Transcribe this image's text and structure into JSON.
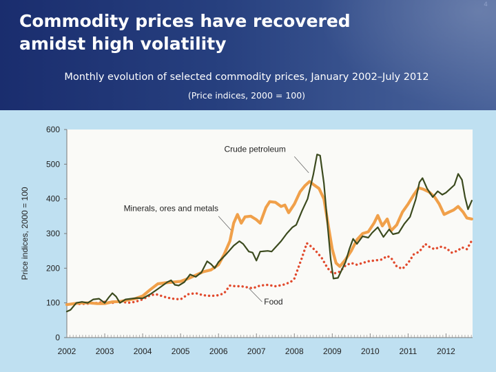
{
  "header": {
    "title": "Commodity prices have recovered amidst high volatility",
    "subtitle": "Monthly evolution of selected commodity prices, January 2002–July 2012",
    "subsubtitle": "(Price indices, 2000 = 100)",
    "slide_number": "4"
  },
  "colors": {
    "crude": "#3b4a1e",
    "minerals": "#f0a04a",
    "food": "#e14a2d",
    "panel": "#bfe0f1",
    "plot": "#fafaf7",
    "header": "#27407f"
  },
  "chart_data": {
    "type": "line",
    "title": "Monthly evolution of selected commodity prices, January 2002–July 2012",
    "ylabel": "Price indices, 2000 = 100",
    "xlabel": "",
    "ylim": [
      0,
      600
    ],
    "yticks": [
      0,
      100,
      200,
      300,
      400,
      500,
      600
    ],
    "xlim": [
      2002.0,
      2012.7
    ],
    "xticks": [
      "2002",
      "2003",
      "2004",
      "2005",
      "2006",
      "2007",
      "2008",
      "2009",
      "2010",
      "2011",
      "2012"
    ],
    "grid": false,
    "legend": "inline annotations",
    "series": [
      {
        "name": "Crude petroleum",
        "style": "solid",
        "points": [
          [
            2002.0,
            75
          ],
          [
            2002.1,
            80
          ],
          [
            2002.25,
            100
          ],
          [
            2002.4,
            103
          ],
          [
            2002.55,
            100
          ],
          [
            2002.7,
            110
          ],
          [
            2002.85,
            112
          ],
          [
            2003.0,
            100
          ],
          [
            2003.1,
            115
          ],
          [
            2003.2,
            128
          ],
          [
            2003.3,
            118
          ],
          [
            2003.4,
            100
          ],
          [
            2003.55,
            110
          ],
          [
            2003.7,
            112
          ],
          [
            2003.85,
            114
          ],
          [
            2004.0,
            113
          ],
          [
            2004.2,
            125
          ],
          [
            2004.4,
            140
          ],
          [
            2004.55,
            152
          ],
          [
            2004.65,
            160
          ],
          [
            2004.75,
            165
          ],
          [
            2004.85,
            152
          ],
          [
            2004.95,
            150
          ],
          [
            2005.1,
            160
          ],
          [
            2005.25,
            182
          ],
          [
            2005.4,
            175
          ],
          [
            2005.55,
            188
          ],
          [
            2005.7,
            220
          ],
          [
            2005.8,
            212
          ],
          [
            2005.9,
            200
          ],
          [
            2006.0,
            218
          ],
          [
            2006.2,
            240
          ],
          [
            2006.4,
            265
          ],
          [
            2006.55,
            278
          ],
          [
            2006.65,
            270
          ],
          [
            2006.8,
            248
          ],
          [
            2006.9,
            245
          ],
          [
            2007.0,
            222
          ],
          [
            2007.1,
            248
          ],
          [
            2007.3,
            250
          ],
          [
            2007.4,
            248
          ],
          [
            2007.5,
            260
          ],
          [
            2007.65,
            278
          ],
          [
            2007.8,
            300
          ],
          [
            2007.95,
            318
          ],
          [
            2008.05,
            325
          ],
          [
            2008.2,
            365
          ],
          [
            2008.35,
            400
          ],
          [
            2008.5,
            470
          ],
          [
            2008.6,
            528
          ],
          [
            2008.68,
            525
          ],
          [
            2008.78,
            445
          ],
          [
            2008.88,
            320
          ],
          [
            2008.96,
            225
          ],
          [
            2009.03,
            170
          ],
          [
            2009.15,
            172
          ],
          [
            2009.25,
            195
          ],
          [
            2009.35,
            218
          ],
          [
            2009.45,
            255
          ],
          [
            2009.55,
            285
          ],
          [
            2009.65,
            270
          ],
          [
            2009.8,
            292
          ],
          [
            2009.95,
            288
          ],
          [
            2010.05,
            302
          ],
          [
            2010.2,
            318
          ],
          [
            2010.35,
            290
          ],
          [
            2010.5,
            312
          ],
          [
            2010.6,
            298
          ],
          [
            2010.75,
            302
          ],
          [
            2010.9,
            328
          ],
          [
            2011.05,
            348
          ],
          [
            2011.2,
            398
          ],
          [
            2011.3,
            448
          ],
          [
            2011.38,
            460
          ],
          [
            2011.5,
            430
          ],
          [
            2011.65,
            405
          ],
          [
            2011.78,
            422
          ],
          [
            2011.9,
            412
          ],
          [
            2012.0,
            418
          ],
          [
            2012.1,
            428
          ],
          [
            2012.22,
            440
          ],
          [
            2012.32,
            472
          ],
          [
            2012.42,
            455
          ],
          [
            2012.5,
            405
          ],
          [
            2012.58,
            370
          ],
          [
            2012.68,
            395
          ]
        ]
      },
      {
        "name": "Minerals, ores and metals",
        "style": "solid-thick",
        "points": [
          [
            2002.0,
            95
          ],
          [
            2002.2,
            98
          ],
          [
            2002.4,
            100
          ],
          [
            2002.6,
            100
          ],
          [
            2002.8,
            98
          ],
          [
            2003.0,
            98
          ],
          [
            2003.2,
            103
          ],
          [
            2003.4,
            104
          ],
          [
            2003.6,
            108
          ],
          [
            2003.8,
            112
          ],
          [
            2004.0,
            120
          ],
          [
            2004.2,
            138
          ],
          [
            2004.4,
            155
          ],
          [
            2004.6,
            158
          ],
          [
            2004.8,
            160
          ],
          [
            2005.0,
            162
          ],
          [
            2005.2,
            170
          ],
          [
            2005.4,
            180
          ],
          [
            2005.6,
            190
          ],
          [
            2005.8,
            195
          ],
          [
            2006.0,
            210
          ],
          [
            2006.15,
            240
          ],
          [
            2006.3,
            278
          ],
          [
            2006.4,
            330
          ],
          [
            2006.5,
            355
          ],
          [
            2006.6,
            330
          ],
          [
            2006.7,
            348
          ],
          [
            2006.85,
            350
          ],
          [
            2007.0,
            340
          ],
          [
            2007.1,
            330
          ],
          [
            2007.25,
            375
          ],
          [
            2007.35,
            392
          ],
          [
            2007.5,
            390
          ],
          [
            2007.65,
            378
          ],
          [
            2007.75,
            382
          ],
          [
            2007.85,
            360
          ],
          [
            2008.0,
            385
          ],
          [
            2008.15,
            420
          ],
          [
            2008.28,
            438
          ],
          [
            2008.4,
            450
          ],
          [
            2008.52,
            440
          ],
          [
            2008.65,
            430
          ],
          [
            2008.78,
            400
          ],
          [
            2008.9,
            320
          ],
          [
            2009.0,
            255
          ],
          [
            2009.1,
            215
          ],
          [
            2009.2,
            205
          ],
          [
            2009.35,
            225
          ],
          [
            2009.5,
            250
          ],
          [
            2009.65,
            282
          ],
          [
            2009.8,
            300
          ],
          [
            2009.95,
            305
          ],
          [
            2010.1,
            330
          ],
          [
            2010.2,
            352
          ],
          [
            2010.32,
            322
          ],
          [
            2010.45,
            342
          ],
          [
            2010.55,
            308
          ],
          [
            2010.7,
            325
          ],
          [
            2010.85,
            362
          ],
          [
            2011.0,
            385
          ],
          [
            2011.15,
            412
          ],
          [
            2011.28,
            432
          ],
          [
            2011.4,
            428
          ],
          [
            2011.55,
            420
          ],
          [
            2011.7,
            405
          ],
          [
            2011.82,
            385
          ],
          [
            2011.95,
            355
          ],
          [
            2012.08,
            362
          ],
          [
            2012.2,
            368
          ],
          [
            2012.32,
            378
          ],
          [
            2012.45,
            362
          ],
          [
            2012.55,
            345
          ],
          [
            2012.68,
            342
          ]
        ]
      },
      {
        "name": "Food",
        "style": "dotted",
        "points": [
          [
            2002.0,
            95
          ],
          [
            2002.2,
            97
          ],
          [
            2002.4,
            97
          ],
          [
            2002.6,
            98
          ],
          [
            2002.8,
            100
          ],
          [
            2003.0,
            103
          ],
          [
            2003.2,
            100
          ],
          [
            2003.4,
            105
          ],
          [
            2003.6,
            100
          ],
          [
            2003.8,
            103
          ],
          [
            2004.0,
            110
          ],
          [
            2004.2,
            122
          ],
          [
            2004.35,
            125
          ],
          [
            2004.5,
            120
          ],
          [
            2004.65,
            115
          ],
          [
            2004.8,
            112
          ],
          [
            2005.0,
            110
          ],
          [
            2005.2,
            125
          ],
          [
            2005.4,
            128
          ],
          [
            2005.6,
            122
          ],
          [
            2005.8,
            120
          ],
          [
            2006.0,
            122
          ],
          [
            2006.15,
            128
          ],
          [
            2006.3,
            150
          ],
          [
            2006.45,
            148
          ],
          [
            2006.6,
            148
          ],
          [
            2006.75,
            145
          ],
          [
            2006.9,
            142
          ],
          [
            2007.1,
            150
          ],
          [
            2007.3,
            152
          ],
          [
            2007.5,
            148
          ],
          [
            2007.7,
            152
          ],
          [
            2007.9,
            160
          ],
          [
            2008.0,
            170
          ],
          [
            2008.1,
            200
          ],
          [
            2008.2,
            230
          ],
          [
            2008.33,
            272
          ],
          [
            2008.45,
            262
          ],
          [
            2008.58,
            248
          ],
          [
            2008.72,
            230
          ],
          [
            2008.85,
            205
          ],
          [
            2008.95,
            190
          ],
          [
            2009.05,
            185
          ],
          [
            2009.2,
            190
          ],
          [
            2009.35,
            208
          ],
          [
            2009.5,
            215
          ],
          [
            2009.65,
            210
          ],
          [
            2009.8,
            215
          ],
          [
            2009.95,
            220
          ],
          [
            2010.1,
            222
          ],
          [
            2010.3,
            225
          ],
          [
            2010.45,
            235
          ],
          [
            2010.55,
            230
          ],
          [
            2010.7,
            205
          ],
          [
            2010.85,
            198
          ],
          [
            2011.0,
            215
          ],
          [
            2011.15,
            240
          ],
          [
            2011.3,
            248
          ],
          [
            2011.45,
            270
          ],
          [
            2011.58,
            260
          ],
          [
            2011.7,
            255
          ],
          [
            2011.85,
            262
          ],
          [
            2012.0,
            258
          ],
          [
            2012.15,
            245
          ],
          [
            2012.3,
            250
          ],
          [
            2012.42,
            260
          ],
          [
            2012.55,
            255
          ],
          [
            2012.68,
            280
          ]
        ]
      }
    ],
    "annotations": [
      {
        "text": "Crude petroleum",
        "series": "Crude petroleum"
      },
      {
        "text": "Minerals, ores and metals",
        "series": "Minerals, ores and metals"
      },
      {
        "text": "Food",
        "series": "Food"
      }
    ]
  }
}
